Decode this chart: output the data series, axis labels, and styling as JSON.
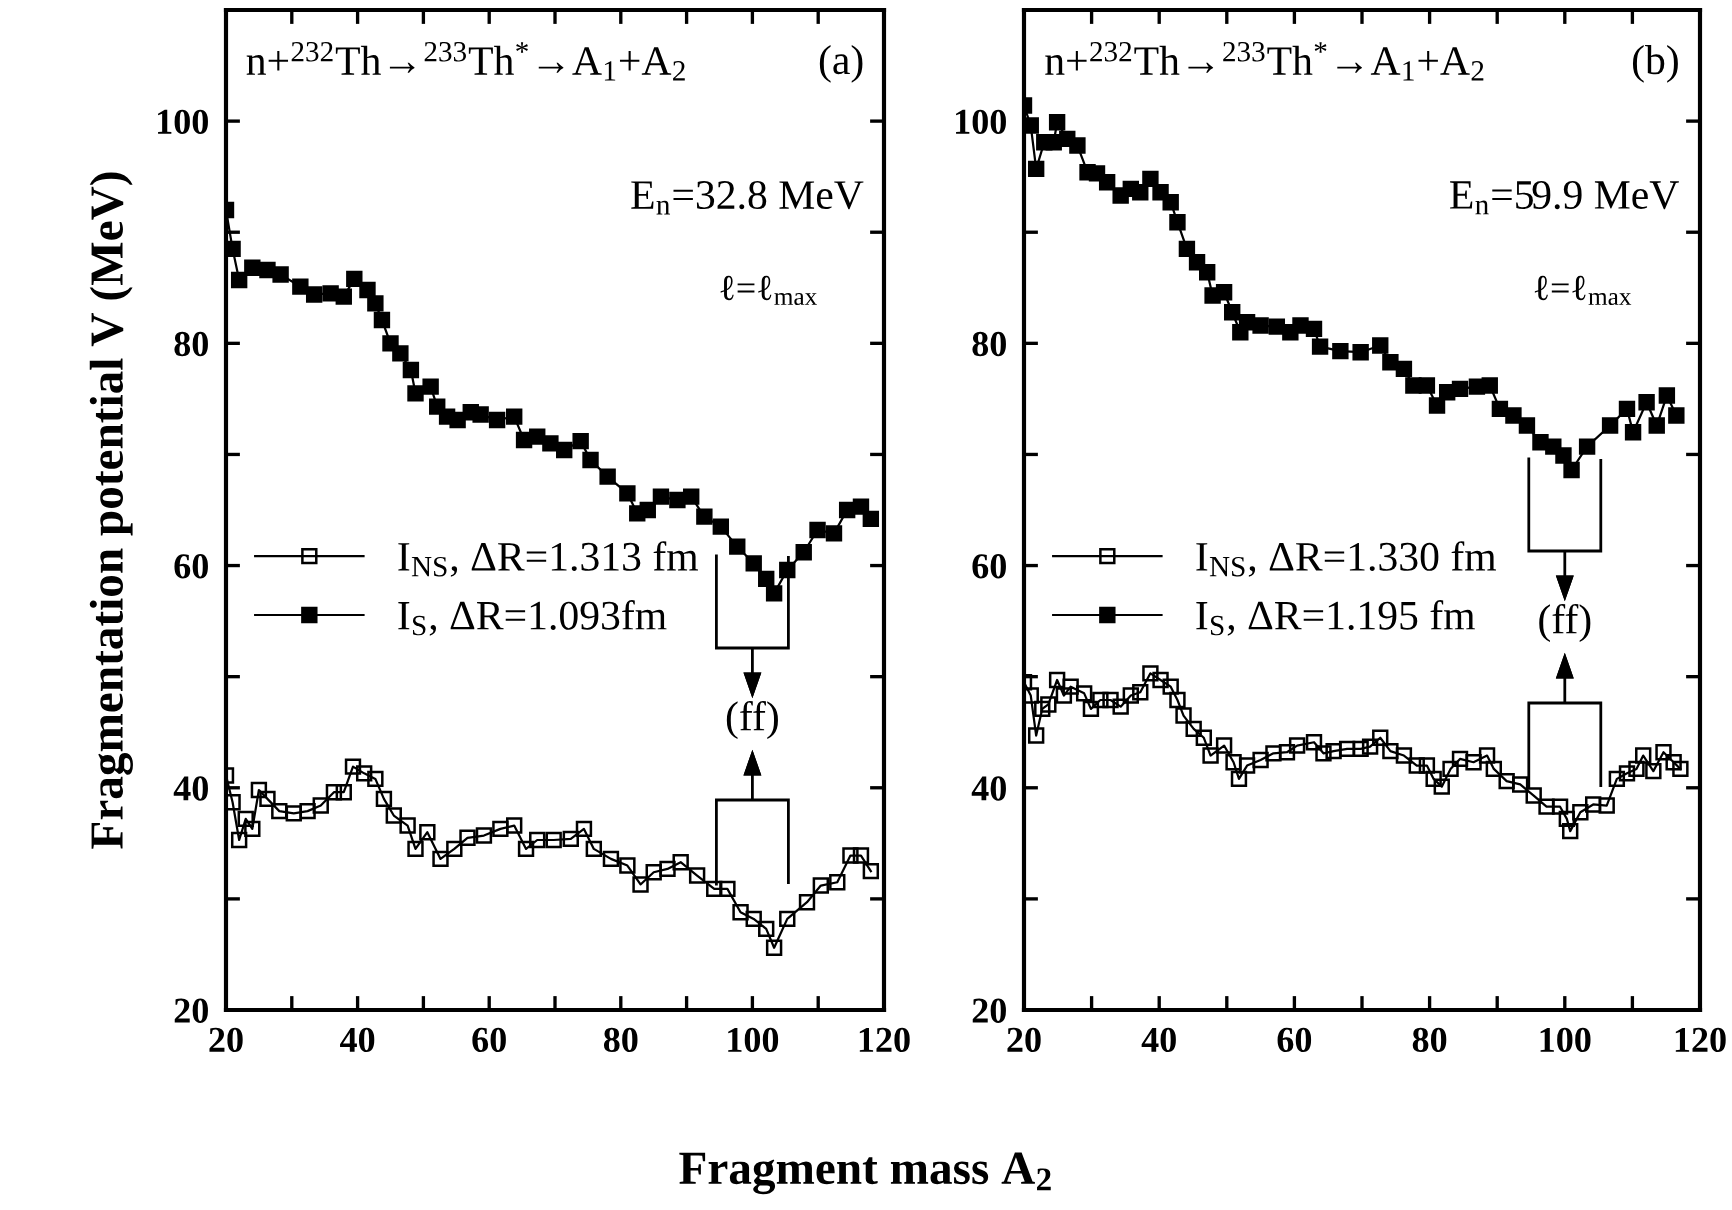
{
  "chart_data": [
    {
      "type": "line",
      "ylabel": "Fragmentation potential V (MeV)",
      "xlabel": "Fragment mass A$_{2}$",
      "annotations": [
        "n+$^{232}$Th→$^{233}$Th$^{*}$→A$_{1}$+A$_{2}$",
        "(a)",
        "E$_{n}$=32.8 MeV",
        "ℓ=ℓ$_{max}$",
        "(ff)"
      ],
      "xlim": [
        20,
        120
      ],
      "xticks": [
        20,
        {
          "value": 30,
          "label": null
        },
        40,
        {
          "value": 50,
          "label": null
        },
        60,
        {
          "value": 70,
          "label": null
        },
        80,
        {
          "value": 90,
          "label": null
        },
        100,
        {
          "value": 110,
          "label": null
        },
        120
      ],
      "ylim": [
        20,
        110
      ],
      "yticks": [
        20,
        {
          "value": 30,
          "label": null
        },
        40,
        {
          "value": 50,
          "label": null
        },
        60,
        {
          "value": 70,
          "label": null
        },
        80,
        {
          "value": 90,
          "label": null
        },
        100
      ],
      "legend": "left",
      "marker": "square",
      "line_style": "solid",
      "grid": false,
      "series": [
        {
          "name": "I$_{NS}$, ΔR=1.313 fm",
          "color": "#000000",
          "x": [
            20,
            21,
            22,
            23,
            24,
            25,
            26.3,
            28.1,
            30.3,
            32.4,
            34.4,
            36.4,
            37.9,
            39.3,
            41,
            42.7,
            44,
            45.5,
            47.6,
            48.8,
            50.6,
            52.6,
            54.7,
            56.7,
            59.2,
            61.7,
            63.8,
            65.6,
            67.3,
            69.8,
            72.4,
            74.4,
            75.9,
            78.5,
            81,
            83,
            85,
            87.1,
            89.1,
            91.6,
            94.2,
            96.2,
            98.2,
            100.2,
            102.1,
            103.3,
            105.3,
            108.3,
            110.4,
            112.9,
            114.9,
            116.5,
            118
          ],
          "values": [
            41.1,
            38.7,
            35.3,
            37.2,
            36.3,
            39.8,
            39,
            37.9,
            37.7,
            37.9,
            38.4,
            39.6,
            39.6,
            41.9,
            41.3,
            40.8,
            39,
            37.5,
            36.6,
            34.5,
            36,
            33.6,
            34.5,
            35.5,
            35.7,
            36.3,
            36.6,
            34.5,
            35.3,
            35.3,
            35.4,
            36.3,
            34.5,
            33.6,
            33,
            31.3,
            32.4,
            32.7,
            33.3,
            32.1,
            30.9,
            30.9,
            28.8,
            28.2,
            27.3,
            25.6,
            28.2,
            29.7,
            31.2,
            31.5,
            33.9,
            33.9,
            32.5
          ]
        },
        {
          "name": "I$_{S}$, ΔR=1.093fm",
          "color": "#000000",
          "x": [
            20,
            21,
            22,
            24,
            26.3,
            28.3,
            31.3,
            33.4,
            35.9,
            37.9,
            39.5,
            41.5,
            42.7,
            43.7,
            45,
            46.5,
            48.1,
            48.8,
            51.1,
            52.1,
            53.6,
            55.2,
            57.2,
            58.7,
            61.2,
            63.8,
            65.3,
            67.3,
            69.3,
            71.4,
            73.9,
            75.4,
            78,
            81,
            82.5,
            84.1,
            86.1,
            88.6,
            90.7,
            92.7,
            95.2,
            97.7,
            100.2,
            102.1,
            103.3,
            105.3,
            107.8,
            109.9,
            112.4,
            114.4,
            116.5,
            118
          ],
          "values": [
            92,
            88.5,
            85.7,
            86.8,
            86.6,
            86.2,
            85.1,
            84.4,
            84.5,
            84.2,
            85.8,
            84.8,
            83.6,
            82.1,
            80,
            79.1,
            77.6,
            75.5,
            76.1,
            74.3,
            73.4,
            73.1,
            73.8,
            73.6,
            73.1,
            73.4,
            71.3,
            71.6,
            71,
            70.4,
            71.2,
            69.5,
            68,
            66.5,
            64.7,
            65,
            66.2,
            65.9,
            66.2,
            64.4,
            63.5,
            61.7,
            60.2,
            58.8,
            57.5,
            59.6,
            61.2,
            63.2,
            62.9,
            65,
            65.3,
            64.2
          ]
        }
      ]
    },
    {
      "type": "line",
      "annotations": [
        "n+$^{232}$Th→$^{233}$Th$^{*}$→A$_{1}$+A$_{2}$",
        "(b)",
        "E$_{n}$=59.9 MeV",
        "ℓ=ℓ$_{max}$",
        "(ff)"
      ],
      "xlim": [
        20,
        120
      ],
      "xticks": [
        20,
        {
          "value": 30,
          "label": null
        },
        40,
        {
          "value": 50,
          "label": null
        },
        60,
        {
          "value": 70,
          "label": null
        },
        80,
        {
          "value": 90,
          "label": null
        },
        100,
        {
          "value": 110,
          "label": null
        },
        120
      ],
      "ylim": [
        20,
        110
      ],
      "yticks": [
        20,
        {
          "value": 30,
          "label": null
        },
        40,
        {
          "value": 50,
          "label": null
        },
        60,
        {
          "value": 70,
          "label": null
        },
        80,
        {
          "value": 90,
          "label": null
        },
        100
      ],
      "legend": "left",
      "marker": "square",
      "line_style": "solid",
      "grid": false,
      "series": [
        {
          "name": "I$_{NS}$, ΔR=1.330 fm",
          "color": "#000000",
          "x": [
            20,
            21,
            21.8,
            22.7,
            23.6,
            24.9,
            25.9,
            26.9,
            28.9,
            29.9,
            31.3,
            32.8,
            34.3,
            35.8,
            37.2,
            38.7,
            40.2,
            41.7,
            42.7,
            43.6,
            45.1,
            46.6,
            47.6,
            49.6,
            51,
            51.8,
            53,
            55,
            56.9,
            58.9,
            60.4,
            62.9,
            64.3,
            65.8,
            67.8,
            69.8,
            71.2,
            72.7,
            74.2,
            76.2,
            78.1,
            79.6,
            80.6,
            81.8,
            83.1,
            84.5,
            86.5,
            88.5,
            89.5,
            91.4,
            93.4,
            95.4,
            97.3,
            99.3,
            100.3,
            100.8,
            102.3,
            104.2,
            106.2,
            107.7,
            109.2,
            110.6,
            111.6,
            113.1,
            114.6,
            116.1,
            117.1
          ],
          "values": [
            49.5,
            48.3,
            44.7,
            47.1,
            47.5,
            49.7,
            48.3,
            49.1,
            48.5,
            47.1,
            47.9,
            47.9,
            47.3,
            48.3,
            48.6,
            50.3,
            49.7,
            49.1,
            47.9,
            46.5,
            45.3,
            44.5,
            42.9,
            43.8,
            42.3,
            40.8,
            42,
            42.5,
            43.1,
            43.2,
            43.8,
            44.1,
            43.1,
            43.3,
            43.5,
            43.5,
            43.7,
            44.5,
            43.3,
            42.9,
            42,
            42,
            40.8,
            40.1,
            41.7,
            42.6,
            42.3,
            42.9,
            41.7,
            40.6,
            40.3,
            39.3,
            38.3,
            38.3,
            37.2,
            36.1,
            37.8,
            38.5,
            38.4,
            40.8,
            41.3,
            41.7,
            42.9,
            41.5,
            43.2,
            42.3,
            41.7
          ]
        },
        {
          "name": "I$_{S}$, ΔR=1.195 fm",
          "color": "#000000",
          "x": [
            20,
            21,
            21.8,
            23,
            24.4,
            24.9,
            26.4,
            27.9,
            29.4,
            30.8,
            32.3,
            34.3,
            35.8,
            37.2,
            38.7,
            40.2,
            41.7,
            42.7,
            44.1,
            45.6,
            47.1,
            47.9,
            49.6,
            50.8,
            52,
            53,
            55,
            57.4,
            59.4,
            60.9,
            62.9,
            63.8,
            66.8,
            69.8,
            72.7,
            74.2,
            76.2,
            77.6,
            79.6,
            81.1,
            82.6,
            84.5,
            87,
            88.9,
            90.4,
            92.4,
            94.4,
            96.4,
            98.3,
            99.8,
            101,
            103.3,
            106.7,
            109.2,
            110.1,
            112.1,
            113.6,
            115.1,
            116.5
          ],
          "values": [
            101.4,
            99.6,
            95.7,
            98.1,
            98.1,
            99.9,
            98.4,
            97.8,
            95.4,
            95.3,
            94.5,
            93.3,
            93.9,
            93.6,
            94.8,
            93.6,
            92.7,
            90.9,
            88.5,
            87.3,
            86.4,
            84.3,
            84.6,
            82.8,
            81,
            81.9,
            81.6,
            81.5,
            81,
            81.6,
            81.3,
            79.7,
            79.3,
            79.2,
            79.8,
            78.3,
            77.7,
            76.2,
            76.2,
            74.4,
            75.6,
            75.9,
            76.1,
            76.2,
            74.1,
            73.5,
            72.6,
            71.1,
            70.7,
            69.9,
            68.6,
            70.7,
            72.6,
            74.1,
            72,
            74.7,
            72.6,
            75.3,
            73.5
          ]
        }
      ]
    }
  ]
}
